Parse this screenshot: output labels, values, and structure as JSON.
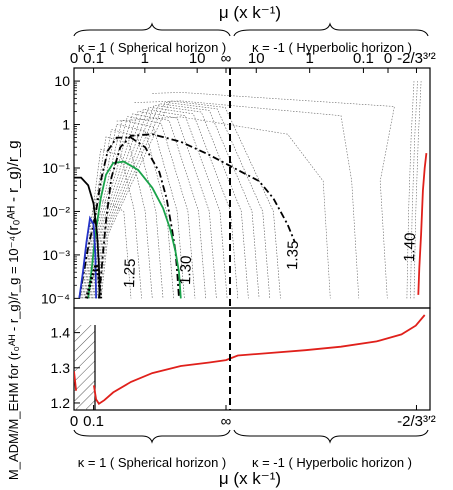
{
  "chart_data": [
    {
      "type": "line",
      "panel": "top",
      "top_axis_title": "μ (x k⁻¹)",
      "ylabel": "(r₀ᴬᴴ - r_g)/r_g",
      "yscale": "log",
      "ylim": [
        6e-05,
        20
      ],
      "y_ticks": [
        {
          "v": 10,
          "label": "10"
        },
        {
          "v": 1,
          "label": "1"
        },
        {
          "v": 0.1,
          "label": "10⁻¹"
        },
        {
          "v": 0.01,
          "label": "10⁻²"
        },
        {
          "v": 0.001,
          "label": "10⁻³"
        },
        {
          "v": 0.0001,
          "label": "10⁻⁴"
        }
      ],
      "x_ticks_top": [
        {
          "xn": 0.0,
          "label": "0"
        },
        {
          "xn": 0.055,
          "label": "0.1"
        },
        {
          "xn": 0.199,
          "label": "1"
        },
        {
          "xn": 0.346,
          "label": "10"
        },
        {
          "xn": 0.427,
          "label": "∞"
        },
        {
          "xn": 0.512,
          "label": "10"
        },
        {
          "xn": 0.662,
          "label": "1"
        },
        {
          "xn": 0.813,
          "label": "0.1"
        },
        {
          "xn": 0.882,
          "label": "0"
        },
        {
          "xn": 0.962,
          "label": "-2/3³′²"
        }
      ],
      "sections": [
        {
          "label": "κ = 1 ( Spherical horizon )"
        },
        {
          "label": "κ = -1 ( Hyperbolic horizon )"
        }
      ],
      "contour_labels": [
        "1.25",
        "1.30",
        "1.35",
        "1.40"
      ],
      "series": [
        {
          "name": "1.25",
          "style": "dash-dot",
          "color": "#000000",
          "points": [
            [
              0.015,
              0.0001
            ],
            [
              0.025,
              0.0003
            ],
            [
              0.04,
              0.0015
            ],
            [
              0.06,
              0.008
            ],
            [
              0.075,
              0.05
            ],
            [
              0.095,
              0.25
            ],
            [
              0.12,
              0.5
            ],
            [
              0.16,
              0.5
            ],
            [
              0.2,
              0.3
            ],
            [
              0.24,
              0.08
            ],
            [
              0.26,
              0.02
            ],
            [
              0.275,
              0.004
            ],
            [
              0.285,
              0.0012
            ],
            [
              0.29,
              0.0004
            ],
            [
              0.295,
              0.0001
            ]
          ]
        },
        {
          "name": "1.30",
          "style": "solid",
          "color": "#1aa34a",
          "points": [
            [
              0.04,
              0.0001
            ],
            [
              0.05,
              0.0005
            ],
            [
              0.06,
              0.003
            ],
            [
              0.075,
              0.02
            ],
            [
              0.09,
              0.07
            ],
            [
              0.11,
              0.13
            ],
            [
              0.14,
              0.14
            ],
            [
              0.18,
              0.09
            ],
            [
              0.22,
              0.035
            ],
            [
              0.25,
              0.012
            ],
            [
              0.27,
              0.004
            ],
            [
              0.285,
              0.0012
            ],
            [
              0.295,
              0.0004
            ],
            [
              0.3,
              0.0001
            ]
          ]
        },
        {
          "name": "1.35",
          "style": "dash-dot",
          "color": "#000000",
          "points": [
            [
              0.07,
              0.0001
            ],
            [
              0.08,
              0.0008
            ],
            [
              0.09,
              0.006
            ],
            [
              0.105,
              0.06
            ],
            [
              0.13,
              0.3
            ],
            [
              0.16,
              0.55
            ],
            [
              0.22,
              0.6
            ],
            [
              0.3,
              0.4
            ],
            [
              0.38,
              0.2
            ],
            [
              0.46,
              0.09
            ],
            [
              0.52,
              0.05
            ],
            [
              0.56,
              0.02
            ],
            [
              0.6,
              0.005
            ],
            [
              0.62,
              0.002
            ]
          ]
        },
        {
          "name": "1.40",
          "style": "solid",
          "color": "#e0201b",
          "points": [
            [
              0.967,
              0.00012
            ],
            [
              0.97,
              0.0005
            ],
            [
              0.975,
              0.003
            ],
            [
              0.98,
              0.03
            ],
            [
              0.985,
              0.1
            ],
            [
              0.99,
              0.22
            ]
          ]
        },
        {
          "name": "",
          "style": "solid",
          "color": "#000000",
          "points": [
            [
              0.0,
              0.06
            ],
            [
              0.02,
              0.06
            ],
            [
              0.04,
              0.04
            ],
            [
              0.055,
              0.015
            ],
            [
              0.065,
              0.003
            ],
            [
              0.07,
              0.0006
            ],
            [
              0.072,
              0.0001
            ]
          ]
        },
        {
          "name": "",
          "style": "solid",
          "color": "#2433c9",
          "points": [
            [
              0.015,
              0.0001
            ],
            [
              0.025,
              0.0004
            ],
            [
              0.035,
              0.002
            ],
            [
              0.045,
              0.007
            ],
            [
              0.055,
              0.005
            ],
            [
              0.06,
              0.001
            ],
            [
              0.062,
              0.0001
            ]
          ]
        },
        {
          "name": "",
          "style": "dotted",
          "color": "#000000",
          "points": [
            [
              0.035,
              0.0001
            ],
            [
              0.05,
              0.0003
            ],
            [
              0.062,
              0.0006
            ],
            [
              0.07,
              0.0003
            ],
            [
              0.075,
              0.0001
            ]
          ]
        }
      ]
    },
    {
      "type": "line",
      "panel": "bottom",
      "ylabel": "M_ADM/M_EHM for (r₀ᴬᴴ - r_g)/r_g = 10⁻⁴",
      "ylim": [
        1.18,
        1.47
      ],
      "y_ticks": [
        {
          "v": 1.2,
          "label": "1.2"
        },
        {
          "v": 1.3,
          "label": "1.3"
        },
        {
          "v": 1.4,
          "label": "1.4"
        }
      ],
      "hatched_region": [
        0.0,
        0.055
      ],
      "x_ticks_bottom": [
        {
          "xn": 0.0,
          "label": "0"
        },
        {
          "xn": 0.055,
          "label": "0.1"
        },
        {
          "xn": 0.427,
          "label": "∞"
        },
        {
          "xn": 0.962,
          "label": "-2/3³′²"
        }
      ],
      "bottom_axis_title": "μ (x k⁻¹)",
      "sections": [
        {
          "label": "κ = 1 ( Spherical horizon )"
        },
        {
          "label": "κ = -1 ( Hyperbolic horizon )"
        }
      ],
      "series": [
        {
          "name": "",
          "color": "#e0201b",
          "points": [
            [
              0.0,
              1.29
            ],
            [
              0.006,
              1.235
            ]
          ]
        },
        {
          "name": "",
          "color": "#e0201b",
          "points": [
            [
              0.056,
              1.25
            ],
            [
              0.062,
              1.21
            ],
            [
              0.07,
              1.198
            ],
            [
              0.085,
              1.208
            ],
            [
              0.11,
              1.23
            ],
            [
              0.16,
              1.26
            ],
            [
              0.22,
              1.285
            ],
            [
              0.3,
              1.305
            ],
            [
              0.38,
              1.315
            ],
            [
              0.427,
              1.322
            ],
            [
              0.46,
              1.335
            ],
            [
              0.55,
              1.342
            ],
            [
              0.65,
              1.35
            ],
            [
              0.75,
              1.36
            ],
            [
              0.85,
              1.375
            ],
            [
              0.92,
              1.395
            ],
            [
              0.96,
              1.42
            ],
            [
              0.985,
              1.45
            ]
          ]
        }
      ]
    }
  ]
}
